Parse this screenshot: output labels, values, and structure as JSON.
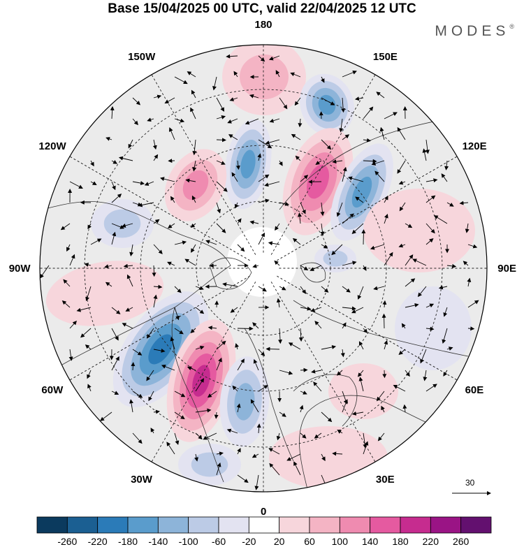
{
  "title": "Base 15/04/2025 00 UTC, valid 22/04/2025 12 UTC",
  "brand": "MODES",
  "brand_mark": "®",
  "longitude_labels": [
    {
      "text": "180",
      "lon": 180
    },
    {
      "text": "150E",
      "lon": 150
    },
    {
      "text": "120E",
      "lon": 120
    },
    {
      "text": "90E",
      "lon": 90
    },
    {
      "text": "60E",
      "lon": 60
    },
    {
      "text": "30E",
      "lon": 30
    },
    {
      "text": "0",
      "lon": 0
    },
    {
      "text": "30W",
      "lon": -30
    },
    {
      "text": "60W",
      "lon": -60
    },
    {
      "text": "90W",
      "lon": -90
    },
    {
      "text": "120W",
      "lon": -120
    },
    {
      "text": "150W",
      "lon": -150
    }
  ],
  "reference_vector_label": "30",
  "colorbar": {
    "tick_labels": [
      "-260",
      "-220",
      "-180",
      "-140",
      "-100",
      "-60",
      "-20",
      "20",
      "60",
      "100",
      "140",
      "180",
      "220",
      "260"
    ],
    "colors": [
      "#0b3a5e",
      "#1b5f92",
      "#2b7bb8",
      "#5a9ccc",
      "#8db4d9",
      "#bccbe6",
      "#e3e3f1",
      "#ffffff",
      "#f7d6dc",
      "#f4b4c4",
      "#ef8bb0",
      "#e55aa0",
      "#c62c8f",
      "#9a1485",
      "#63106f"
    ]
  }
}
